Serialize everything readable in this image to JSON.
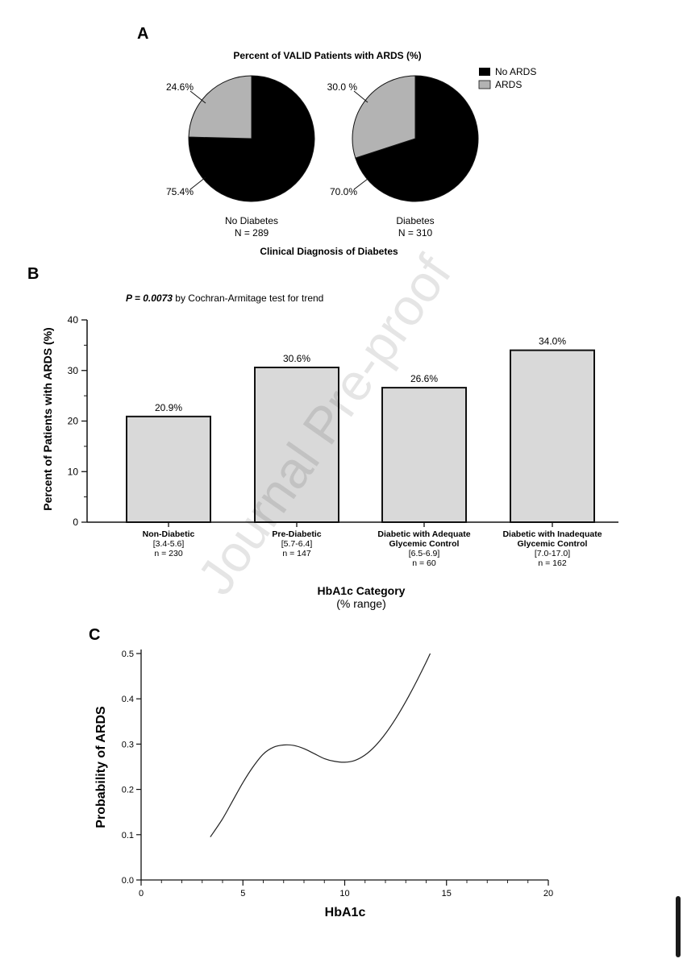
{
  "watermark": "Journal Pre-proof",
  "colors": {
    "no_ards": "#000000",
    "ards": "#b3b3b3",
    "bar_fill": "#d9d9d9",
    "stroke": "#111111"
  },
  "chart_data": [
    {
      "type": "pie",
      "panel": "A",
      "title": "Percent of VALID Patients with ARDS (%)",
      "xlabel": "Clinical Diagnosis of Diabetes",
      "legend": {
        "placement": "top-right",
        "entries": [
          "No ARDS",
          "ARDS"
        ]
      },
      "pies": [
        {
          "category": "No Diabetes",
          "n_label": "N = 289",
          "slices": [
            {
              "name": "No ARDS",
              "value": 75.4,
              "label": "75.4%"
            },
            {
              "name": "ARDS",
              "value": 24.6,
              "label": "24.6%"
            }
          ]
        },
        {
          "category": "Diabetes",
          "n_label": "N = 310",
          "slices": [
            {
              "name": "No ARDS",
              "value": 70.0,
              "label": "70.0%"
            },
            {
              "name": "ARDS",
              "value": 30.0,
              "label": "30.0 %"
            }
          ]
        }
      ]
    },
    {
      "type": "bar",
      "panel": "B",
      "annotation_p": "P = 0.0073",
      "annotation_rest": " by Cochran-Armitage test for trend",
      "ylabel": "Percent of Patients with ARDS (%)",
      "xlabel": "HbA1c Category",
      "xlabel_sub": "(% range)",
      "ylim": [
        0,
        40
      ],
      "yticks": [
        "0",
        "10",
        "20",
        "30",
        "40"
      ],
      "categories": [
        {
          "label_lines": [
            "Non-Diabetic"
          ],
          "range": "[3.4-5.6]",
          "n": "n = 230"
        },
        {
          "label_lines": [
            "Pre-Diabetic"
          ],
          "range": "[5.7-6.4]",
          "n": "n = 147"
        },
        {
          "label_lines": [
            "Diabetic with Adequate",
            "Glycemic Control"
          ],
          "range": "[6.5-6.9]",
          "n": "n = 60"
        },
        {
          "label_lines": [
            "Diabetic with Inadequate",
            "Glycemic Control"
          ],
          "range": "[7.0-17.0]",
          "n": "n = 162"
        }
      ],
      "values": [
        20.9,
        30.6,
        26.6,
        34.0
      ],
      "value_labels": [
        "20.9%",
        "30.6%",
        "26.6%",
        "34.0%"
      ]
    },
    {
      "type": "line",
      "panel": "C",
      "xlabel": "HbA1c",
      "ylabel": "Probability of ARDS",
      "xlim": [
        0,
        20
      ],
      "ylim": [
        0,
        0.5
      ],
      "xticks": [
        "0",
        "5",
        "10",
        "15",
        "20"
      ],
      "yticks": [
        "0.0",
        "0.1",
        "0.2",
        "0.3",
        "0.4",
        "0.5"
      ],
      "x": [
        3.4,
        4.0,
        4.5,
        5.0,
        5.5,
        6.0,
        6.5,
        7.0,
        7.5,
        8.0,
        8.5,
        9.0,
        9.5,
        10.0,
        10.5,
        11.0,
        11.5,
        12.0,
        12.5,
        13.0,
        13.5,
        14.0,
        14.2
      ],
      "y": [
        0.095,
        0.135,
        0.175,
        0.215,
        0.25,
        0.278,
        0.293,
        0.298,
        0.297,
        0.29,
        0.279,
        0.268,
        0.262,
        0.26,
        0.264,
        0.276,
        0.296,
        0.323,
        0.356,
        0.394,
        0.436,
        0.481,
        0.5
      ]
    }
  ]
}
